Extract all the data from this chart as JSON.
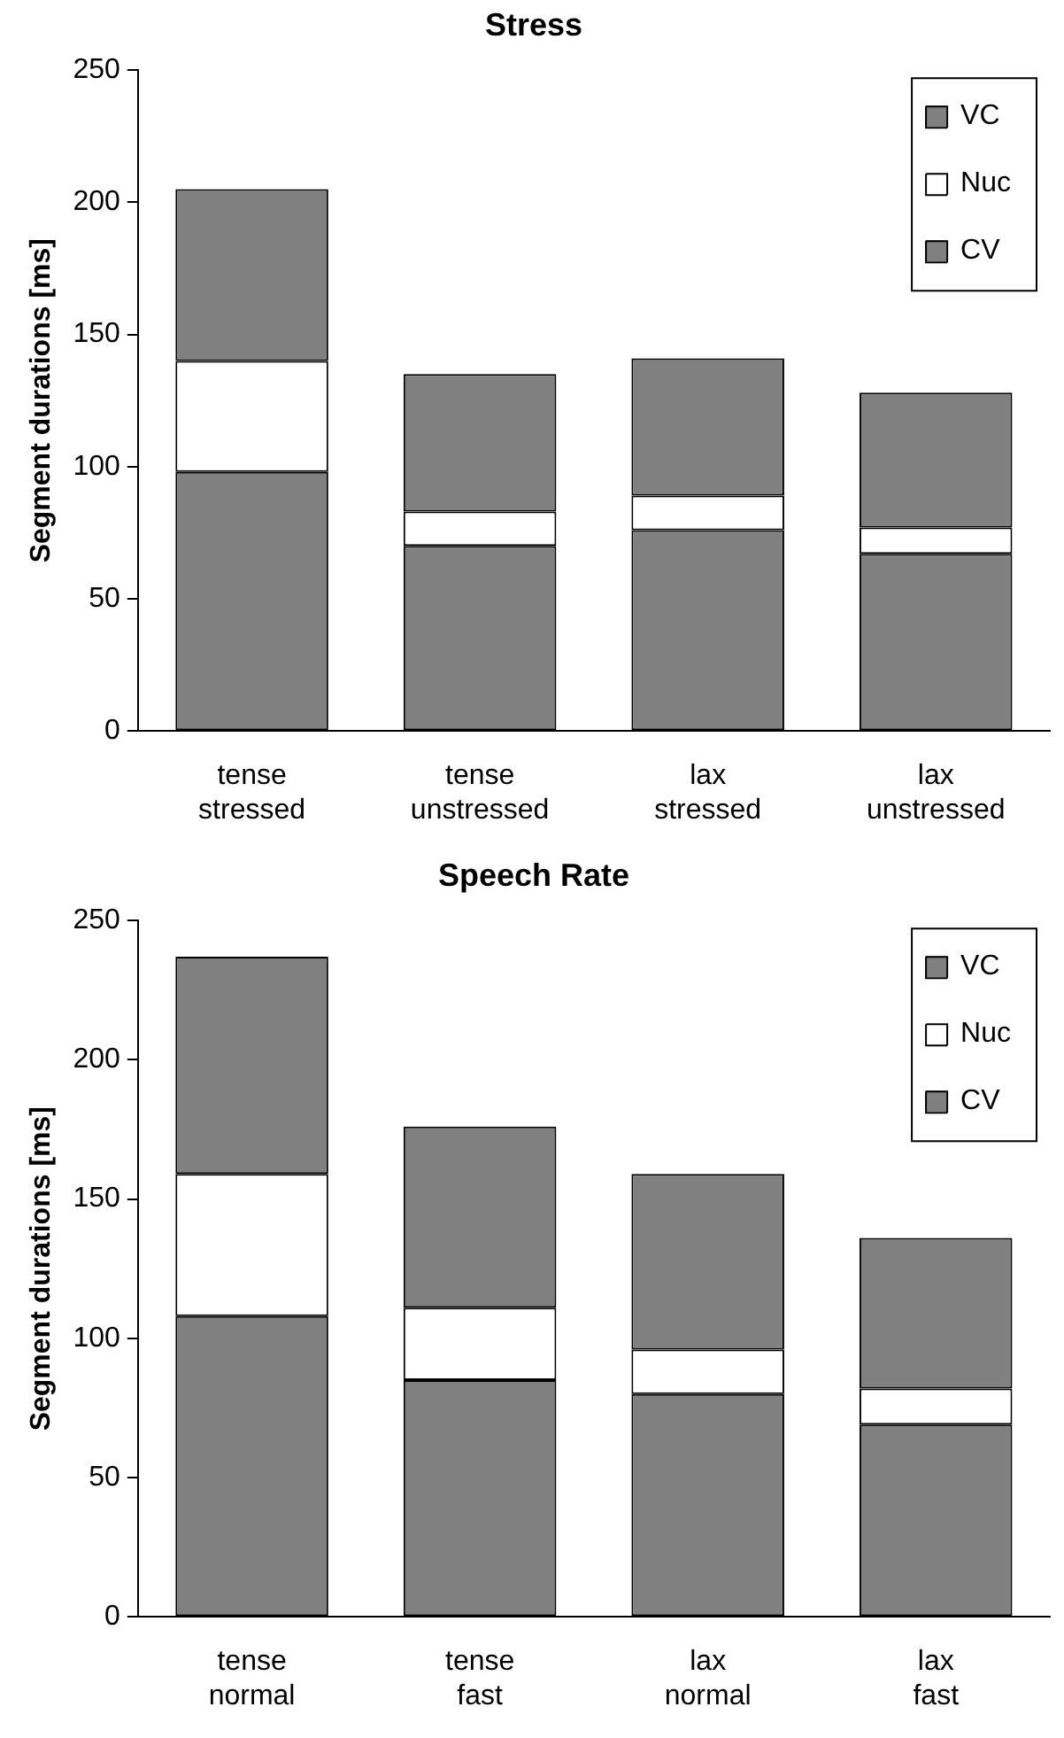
{
  "chart_data": [
    {
      "type": "bar",
      "title": "Stress",
      "ylabel": "Segment durations [ms]",
      "categories": [
        "tense\nstressed",
        "tense\nunstressed",
        "lax\nstressed",
        "lax\nunstressed"
      ],
      "stacked": true,
      "ylim": [
        0,
        250
      ],
      "yticks": [
        0,
        50,
        100,
        150,
        200,
        250
      ],
      "grid": false,
      "legend": "top right",
      "series": [
        {
          "name": "CV",
          "color": "#808080",
          "values": [
            98,
            70,
            76,
            67
          ]
        },
        {
          "name": "Nuc",
          "color": "#ffffff",
          "values": [
            42,
            13,
            13,
            10
          ]
        },
        {
          "name": "VC",
          "color": "#808080",
          "values": [
            65,
            52,
            52,
            51
          ]
        }
      ]
    },
    {
      "type": "bar",
      "title": "Speech Rate",
      "ylabel": "Segment durations [ms]",
      "categories": [
        "tense\nnormal",
        "tense\nfast",
        "lax\nnormal",
        "lax\nfast"
      ],
      "stacked": true,
      "ylim": [
        0,
        250
      ],
      "yticks": [
        0,
        50,
        100,
        150,
        200,
        250
      ],
      "grid": false,
      "legend": "top right",
      "series": [
        {
          "name": "CV",
          "color": "#808080",
          "values": [
            108,
            85,
            80,
            69
          ]
        },
        {
          "name": "Nuc",
          "color": "#ffffff",
          "values": [
            51,
            26,
            16,
            13
          ]
        },
        {
          "name": "VC",
          "color": "#808080",
          "values": [
            78,
            65,
            63,
            54
          ]
        }
      ]
    }
  ]
}
